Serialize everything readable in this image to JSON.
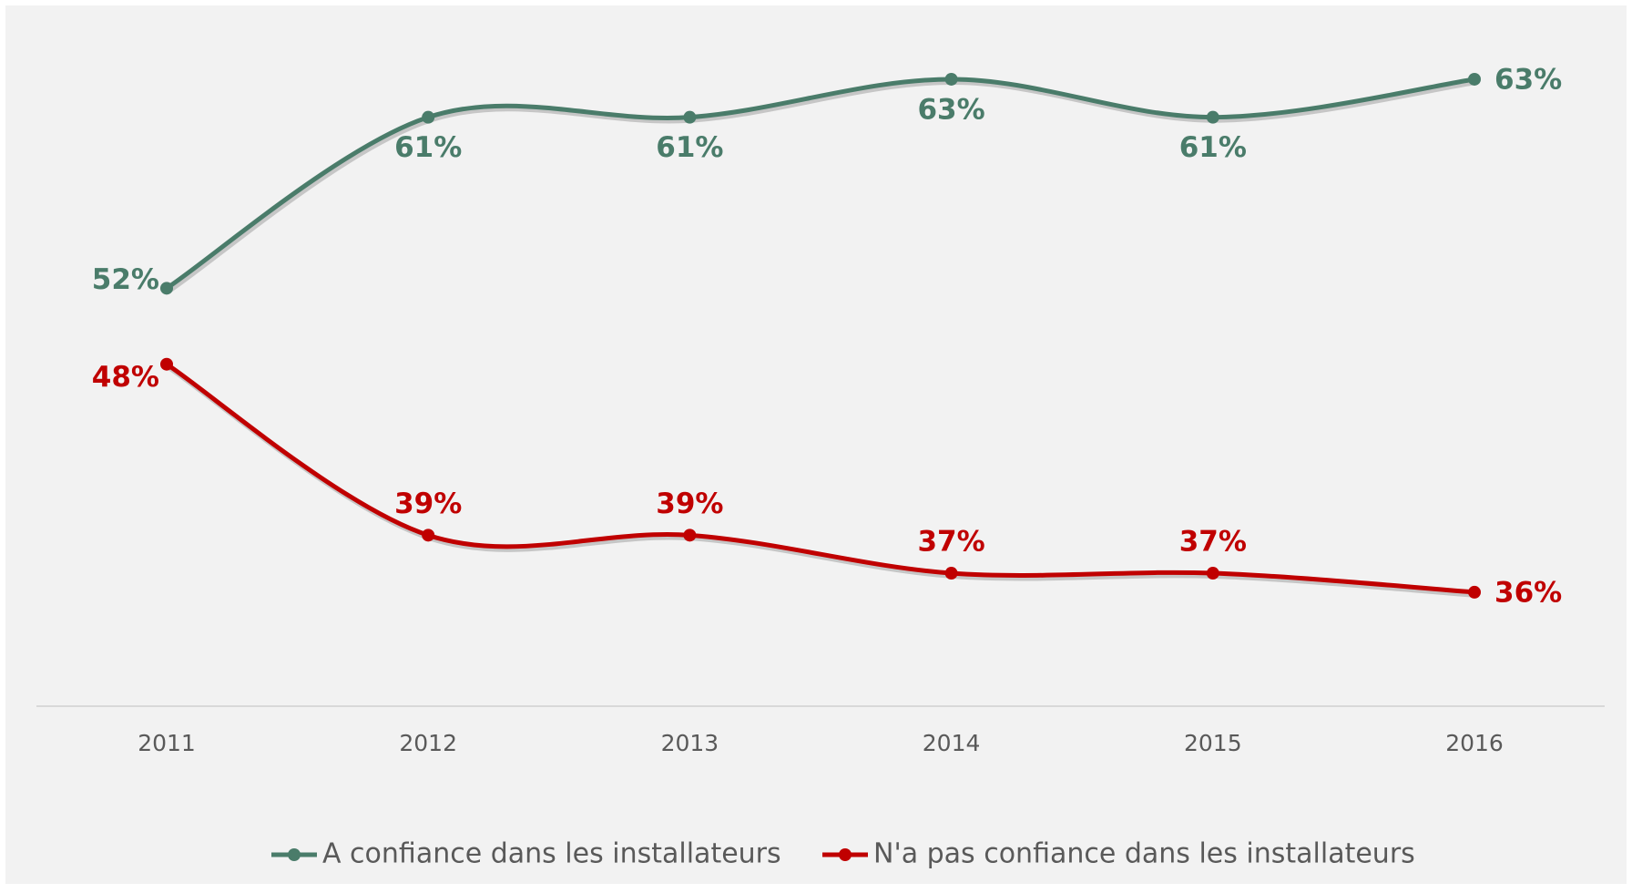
{
  "chart_data": {
    "type": "line",
    "categories": [
      "2011",
      "2012",
      "2013",
      "2014",
      "2015",
      "2016"
    ],
    "series": [
      {
        "name": "A confiance dans les installateurs",
        "color": "#4a7c6a",
        "values": [
          52,
          61,
          61,
          63,
          61,
          63
        ],
        "value_labels": [
          "52%",
          "61%",
          "61%",
          "63%",
          "61%",
          "63%"
        ]
      },
      {
        "name": "N'a pas confiance dans les installateurs",
        "color": "#c00000",
        "values": [
          48,
          39,
          39,
          37,
          37,
          36
        ],
        "value_labels": [
          "48%",
          "39%",
          "39%",
          "37%",
          "37%",
          "36%"
        ]
      }
    ],
    "ylim": [
      30,
      66.5
    ],
    "smooth": true,
    "legend": "bottom"
  }
}
